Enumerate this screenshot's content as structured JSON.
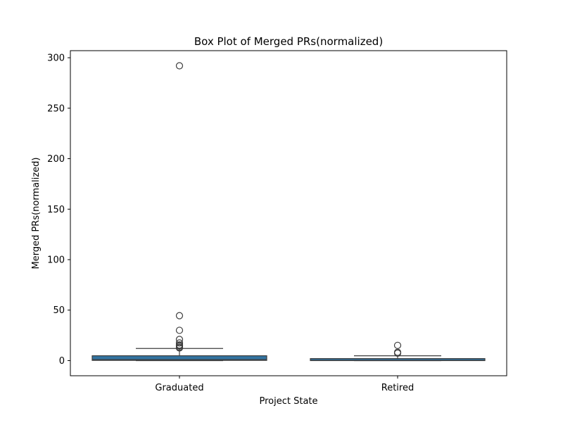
{
  "chart_data": {
    "type": "box",
    "title": "Box Plot of Merged PRs(normalized)",
    "xlabel": "Project State",
    "ylabel": "Merged PRs(normalized)",
    "ylim": [
      -15,
      307
    ],
    "yticks": [
      0,
      50,
      100,
      150,
      200,
      250,
      300
    ],
    "grid": false,
    "legend": "none",
    "box_color": "#3274a1",
    "edge_color": "#3d3d3d",
    "categories": [
      "Graduated",
      "Retired"
    ],
    "boxes": [
      {
        "category": "Graduated",
        "whisker_low": 0,
        "q1": 0.2,
        "median": 1.0,
        "q3": 4.8,
        "whisker_high": 12,
        "outliers": [
          12.5,
          13.3,
          14.5,
          15.5,
          17.5,
          21,
          30,
          44.5,
          292
        ]
      },
      {
        "category": "Retired",
        "whisker_low": 0,
        "q1": 0,
        "median": 0.3,
        "q3": 2.0,
        "whisker_high": 4.8,
        "outliers": [
          7.4,
          8.3,
          15.1
        ]
      }
    ]
  }
}
